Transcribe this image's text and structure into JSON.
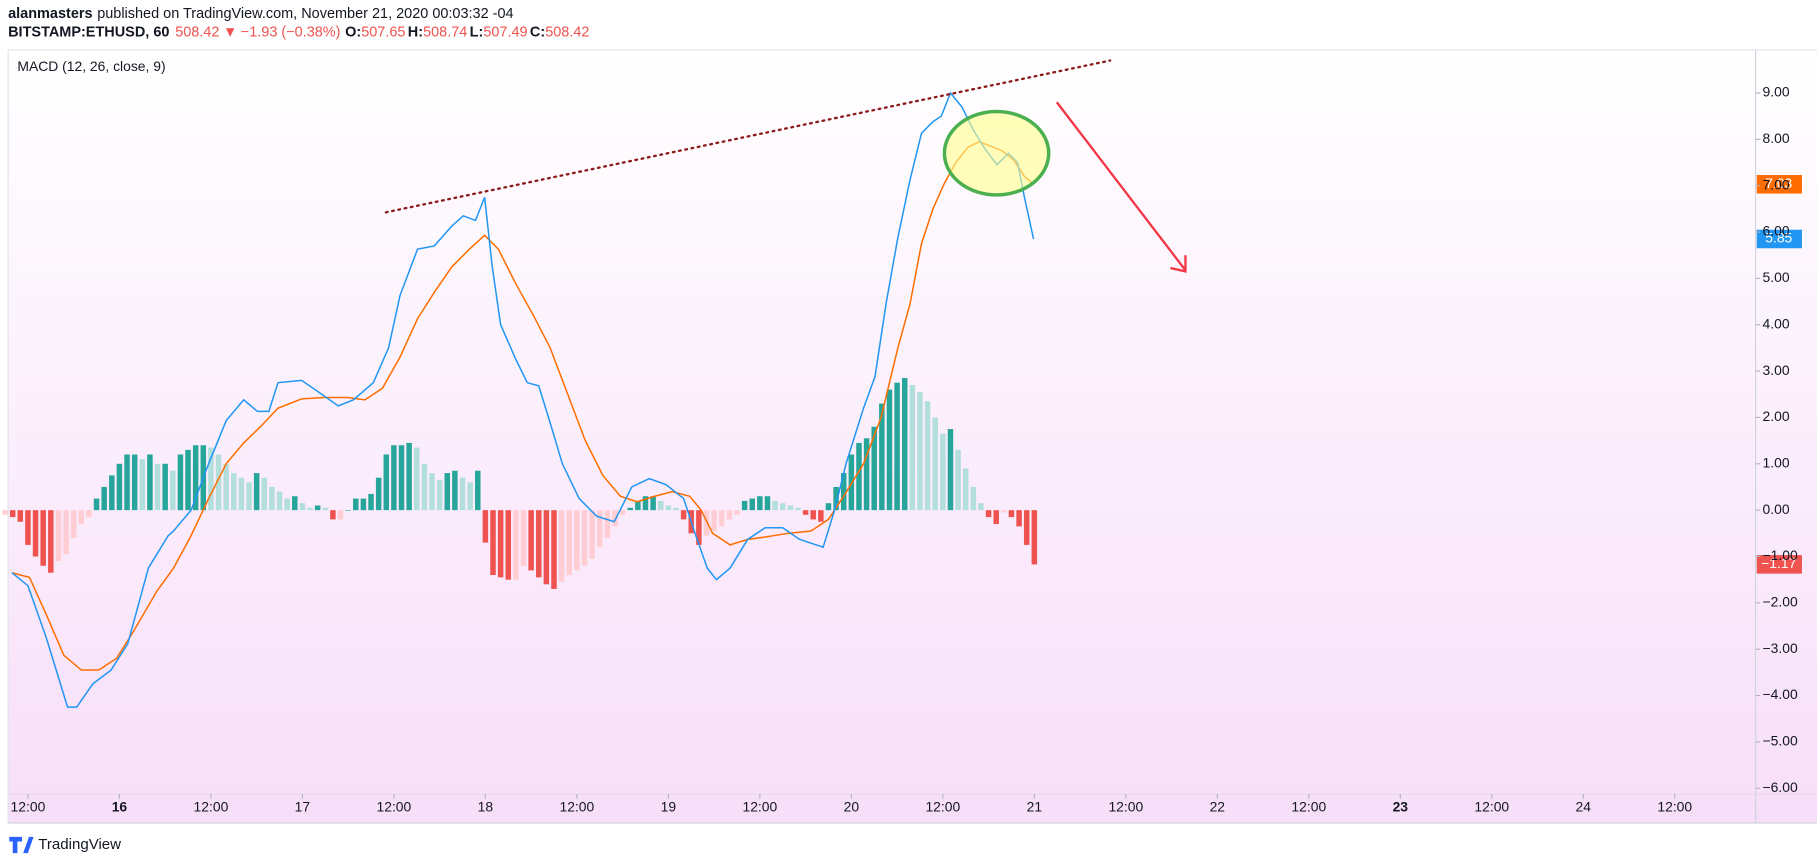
{
  "chart_data": {
    "type": "macd",
    "header": {
      "author": "alanmasters",
      "published": "published on TradingView.com, November 21, 2020 00:03:32 -04",
      "symbol": "BITSTAMP:ETHUSD, 60",
      "price": "508.42",
      "arrow": "▼",
      "change": "−1.93 (−0.38%)",
      "ohlc": [
        {
          "label": "O:",
          "value": "507.65"
        },
        {
          "label": "H:",
          "value": "508.74"
        },
        {
          "label": "L:",
          "value": "507.49"
        },
        {
          "label": "C:",
          "value": "508.42"
        }
      ]
    },
    "title": "MACD (12, 26, close, 9)",
    "footer": "TradingView",
    "xlim": [
      9.4,
      238.6
    ],
    "xticks": [
      {
        "value": 12,
        "label": "12:00"
      },
      {
        "value": 24,
        "label": "16",
        "bold": true
      },
      {
        "value": 36,
        "label": "12:00"
      },
      {
        "value": 48,
        "label": "17"
      },
      {
        "value": 60,
        "label": "12:00"
      },
      {
        "value": 72,
        "label": "18"
      },
      {
        "value": 84,
        "label": "12:00"
      },
      {
        "value": 96,
        "label": "19"
      },
      {
        "value": 108,
        "label": "12:00"
      },
      {
        "value": 120,
        "label": "20"
      },
      {
        "value": 132,
        "label": "12:00"
      },
      {
        "value": 144,
        "label": "21"
      },
      {
        "value": 156,
        "label": "12:00"
      },
      {
        "value": 168,
        "label": "22"
      },
      {
        "value": 180,
        "label": "12:00"
      },
      {
        "value": 192,
        "label": "23",
        "bold": true
      },
      {
        "value": 204,
        "label": "12:00"
      },
      {
        "value": 216,
        "label": "24"
      },
      {
        "value": 228,
        "label": "12:00"
      }
    ],
    "ylim": [
      -6.125,
      9.925
    ],
    "yticks": [
      {
        "value": 9,
        "label": "9.00"
      },
      {
        "value": 8,
        "label": "8.00"
      },
      {
        "value": 7,
        "label": "7.00"
      },
      {
        "value": 6,
        "label": "6.00"
      },
      {
        "value": 5,
        "label": "5.00"
      },
      {
        "value": 4,
        "label": "4.00"
      },
      {
        "value": 3,
        "label": "3.00"
      },
      {
        "value": 2,
        "label": "2.00"
      },
      {
        "value": 1,
        "label": "1.00"
      },
      {
        "value": 0,
        "label": "0.00"
      },
      {
        "value": -1,
        "label": "−1.00"
      },
      {
        "value": -2,
        "label": "−2.00"
      },
      {
        "value": -3,
        "label": "−3.00"
      },
      {
        "value": -4,
        "label": "−4.00"
      },
      {
        "value": -5,
        "label": "−5.00"
      },
      {
        "value": -6,
        "label": "−6.00"
      }
    ],
    "histogram": {
      "colors": {
        "rising_positive": "#26a69a",
        "falling_positive": "#b2dfdb",
        "falling_negative": "#ef5350",
        "rising_negative": "#ffcdd2"
      },
      "badge_color": "#ef5350",
      "last_label": "−1.17",
      "x": [
        9,
        10,
        11,
        12,
        13,
        14,
        15,
        16,
        17,
        18,
        19,
        20,
        21,
        22,
        23,
        24,
        25,
        26,
        27,
        28,
        29,
        30,
        31,
        32,
        33,
        34,
        35,
        36,
        37,
        38,
        39,
        40,
        41,
        42,
        43,
        44,
        45,
        46,
        47,
        48,
        49,
        50,
        51,
        52,
        53,
        54,
        55,
        56,
        57,
        58,
        59,
        60,
        61,
        62,
        63,
        64,
        65,
        66,
        67,
        68,
        69,
        70,
        71,
        72,
        73,
        74,
        75,
        76,
        77,
        78,
        79,
        80,
        81,
        82,
        83,
        84,
        85,
        86,
        87,
        88,
        89,
        90,
        91,
        92,
        93,
        94,
        95,
        96,
        97,
        98,
        99,
        100,
        101,
        102,
        103,
        104,
        105,
        106,
        107,
        108,
        109,
        110,
        111,
        112,
        113,
        114,
        115,
        116,
        117,
        118,
        119,
        120,
        121,
        122,
        123,
        124,
        125,
        126,
        127,
        128,
        129,
        130,
        131,
        132,
        133,
        134,
        135,
        136,
        137,
        138,
        139,
        140,
        141,
        142,
        143,
        144
      ],
      "values": [
        -0.1,
        -0.15,
        -0.25,
        -0.75,
        -1.0,
        -1.2,
        -1.35,
        -1.1,
        -0.95,
        -0.6,
        -0.3,
        -0.15,
        0.25,
        0.5,
        0.75,
        1.0,
        1.2,
        1.2,
        1.1,
        1.2,
        1.0,
        1.0,
        0.85,
        1.2,
        1.3,
        1.4,
        1.4,
        1.35,
        1.2,
        1.0,
        0.8,
        0.7,
        0.6,
        0.8,
        0.7,
        0.5,
        0.4,
        0.25,
        0.3,
        0.15,
        0.05,
        0.1,
        0.05,
        -0.2,
        -0.2,
        0,
        0.25,
        0.25,
        0.35,
        0.7,
        1.2,
        1.4,
        1.4,
        1.45,
        1.35,
        1.0,
        0.8,
        0.65,
        0.8,
        0.85,
        0.7,
        0.6,
        0.85,
        -0.7,
        -1.4,
        -1.45,
        -1.5,
        -1.5,
        -1.2,
        -1.3,
        -1.45,
        -1.6,
        -1.7,
        -1.55,
        -1.4,
        -1.3,
        -1.2,
        -1.05,
        -0.8,
        -0.6,
        -0.35,
        -0.1,
        0.05,
        0.2,
        0.3,
        0.3,
        0.2,
        0.1,
        0.05,
        -0.2,
        -0.5,
        -0.75,
        -0.55,
        -0.45,
        -0.35,
        -0.2,
        -0.1,
        0.2,
        0.25,
        0.3,
        0.3,
        0.2,
        0.15,
        0.1,
        0.05,
        -0.1,
        -0.2,
        -0.25,
        0.15,
        0.5,
        0.8,
        1.2,
        1.45,
        1.55,
        1.8,
        2.3,
        2.6,
        2.75,
        2.85,
        2.7,
        2.55,
        2.35,
        2.0,
        1.65,
        1.75,
        1.3,
        0.9,
        0.5,
        0.15,
        -0.15,
        -0.3,
        -0.05,
        -0.15,
        -0.35,
        -0.75,
        -1.17
      ]
    },
    "signal": {
      "color": "#ff6d00",
      "last_label": "7.03",
      "x": [
        9.9,
        12.2,
        14.4,
        16.7,
        19.0,
        21.3,
        23.6,
        25.8,
        28.9,
        31.1,
        33.4,
        35.7,
        38.0,
        40.3,
        42.5,
        44.8,
        47.9,
        50.9,
        53.9,
        56.2,
        58.5,
        60.8,
        63.1,
        65.3,
        67.6,
        69.9,
        71.9,
        73.7,
        76.0,
        78.3,
        80.5,
        82.8,
        85.1,
        87.4,
        89.7,
        91.9,
        94.2,
        96.5,
        98.8,
        100.3,
        101.8,
        104.1,
        106.4,
        108.7,
        111.7,
        114.7,
        117.0,
        119.3,
        121.6,
        123.9,
        126.1,
        127.7,
        129.2,
        130.7,
        132.2,
        133.7,
        135.3,
        136.8,
        138.3,
        139.8,
        141.3,
        142.7,
        143.9
      ],
      "values": [
        -1.35,
        -1.45,
        -2.25,
        -3.13,
        -3.45,
        -3.45,
        -3.2,
        -2.63,
        -1.75,
        -1.25,
        -0.55,
        0.25,
        1.0,
        1.45,
        1.8,
        2.2,
        2.4,
        2.43,
        2.43,
        2.38,
        2.63,
        3.3,
        4.13,
        4.7,
        5.25,
        5.63,
        5.93,
        5.63,
        4.88,
        4.2,
        3.5,
        2.5,
        1.5,
        0.75,
        0.3,
        0.18,
        0.3,
        0.4,
        0.3,
        0,
        -0.5,
        -0.75,
        -0.63,
        -0.58,
        -0.5,
        -0.45,
        -0.2,
        0.38,
        1.0,
        2.0,
        3.5,
        4.45,
        5.75,
        6.5,
        7.05,
        7.5,
        7.83,
        7.95,
        7.85,
        7.75,
        7.55,
        7.2,
        7.03
      ]
    },
    "macd": {
      "color": "#2196f3",
      "last_label": "5.85",
      "x": [
        9.9,
        12.0,
        14.4,
        17.2,
        18.4,
        20.5,
        22.9,
        25.1,
        27.8,
        30.4,
        31.1,
        33.4,
        35.7,
        38.0,
        40.3,
        42.1,
        43.6,
        44.8,
        47.9,
        50.1,
        52.7,
        54.7,
        57.3,
        59.3,
        60.8,
        63.1,
        65.3,
        67.6,
        69.1,
        70.7,
        71.9,
        72.9,
        74.0,
        76.0,
        77.5,
        79.0,
        80.5,
        82.1,
        84.3,
        86.6,
        88.9,
        91.2,
        93.5,
        95.7,
        98.0,
        99.5,
        101.1,
        102.3,
        104.1,
        106.4,
        108.7,
        111.0,
        113.2,
        116.3,
        117.8,
        119.3,
        121.6,
        123.1,
        124.6,
        126.1,
        127.7,
        129.2,
        130.7,
        131.8,
        133.0,
        134.5,
        136.0,
        137.5,
        139.1,
        140.6,
        141.8,
        142.7,
        143.9
      ],
      "values": [
        -1.35,
        -1.63,
        -2.75,
        -4.25,
        -4.25,
        -3.75,
        -3.45,
        -2.88,
        -1.25,
        -0.55,
        -0.45,
        0,
        1.0,
        1.93,
        2.38,
        2.13,
        2.13,
        2.75,
        2.8,
        2.55,
        2.25,
        2.38,
        2.75,
        3.5,
        4.63,
        5.63,
        5.7,
        6.13,
        6.35,
        6.25,
        6.75,
        5.25,
        4.0,
        3.25,
        2.75,
        2.68,
        1.88,
        1.0,
        0.25,
        -0.13,
        -0.25,
        0.5,
        0.68,
        0.55,
        0.25,
        -0.5,
        -1.25,
        -1.5,
        -1.25,
        -0.63,
        -0.38,
        -0.38,
        -0.63,
        -0.8,
        0,
        1.0,
        2.2,
        2.88,
        4.5,
        5.88,
        7.13,
        8.13,
        8.38,
        8.5,
        9.0,
        8.7,
        8.2,
        7.8,
        7.45,
        7.7,
        7.5,
        6.75,
        5.85
      ]
    }
  }
}
